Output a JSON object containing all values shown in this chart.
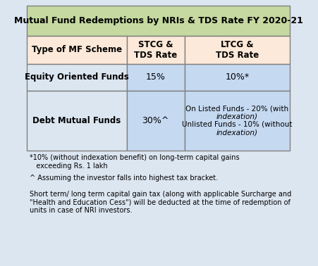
{
  "title": "Mutual Fund Redemptions by NRIs & TDS Rate FY 2020-21",
  "title_bg": "#c5d9a0",
  "header_bg": "#fde9d9",
  "cell_bg_blue": "#c5d9f1",
  "cell_bg_light": "#dce6f1",
  "outer_bg": "#dce6f1",
  "col_headers": [
    "Type of MF Scheme",
    "STCG &\nTDS Rate",
    "LTCG &\nTDS Rate"
  ],
  "rows": [
    [
      "Equity Oriented Funds",
      "15%",
      "10%*"
    ],
    [
      "Debt Mutual Funds",
      "30%^",
      ""
    ]
  ],
  "footnotes": [
    "*10% (without indexation benefit) on long-term capital gains\n   exceeding Rs. 1 lakh",
    "^ Assuming the investor falls into highest tax bracket.",
    "",
    "Short term/ long term capital gain tax (along with applicable Surcharge and\n\"Health and Education Cess\") will be deducted at the time of redemption of\nunits in case of NRI investors."
  ],
  "border_color": "#808080",
  "text_color": "#000000",
  "figsize": [
    4.51,
    3.78
  ],
  "dpi": 100
}
